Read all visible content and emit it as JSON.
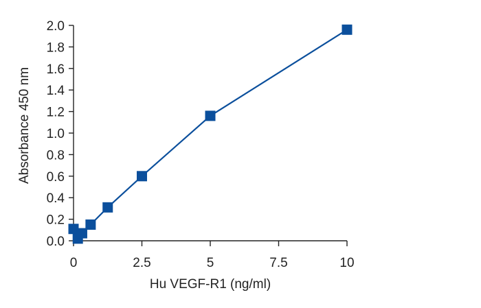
{
  "chart_data": {
    "type": "line",
    "title": "",
    "xlabel": "Hu VEGF-R1 (ng/ml)",
    "ylabel": "Absorbance 450 nm",
    "xlim": [
      0,
      10
    ],
    "ylim": [
      0,
      2.0
    ],
    "x_ticks": [
      "0",
      "2.5",
      "5",
      "7.5",
      "10"
    ],
    "y_ticks": [
      "0.0",
      "0.2",
      "0.4",
      "0.6",
      "0.8",
      "1.0",
      "1.2",
      "1.4",
      "1.6",
      "1.8",
      "2.0"
    ],
    "grid": false,
    "legend": "none",
    "series": [
      {
        "color": "#0b4f9c",
        "marker": "square",
        "points": [
          {
            "x": 0,
            "y": 0.11
          },
          {
            "x": 0.156,
            "y": 0.02
          },
          {
            "x": 0.313,
            "y": 0.07
          },
          {
            "x": 0.625,
            "y": 0.15
          },
          {
            "x": 1.25,
            "y": 0.31
          },
          {
            "x": 2.5,
            "y": 0.6
          },
          {
            "x": 5,
            "y": 1.16
          },
          {
            "x": 10,
            "y": 1.96
          }
        ]
      }
    ]
  }
}
